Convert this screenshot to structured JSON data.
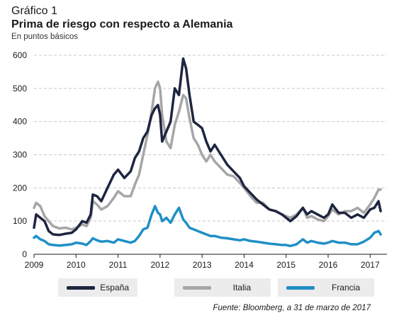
{
  "header": {
    "kicker": "Gráfico 1",
    "title": "Prima de riesgo con respecto a Alemania",
    "subtitle": "En puntos básicos"
  },
  "source": "Fuente: Bloomberg, a 31 de marzo de 2017",
  "chart_data": {
    "type": "line",
    "title": "Prima de riesgo con respecto a Alemania",
    "ylabel": "",
    "xlabel": "",
    "xlim": [
      2009.0,
      2017.4
    ],
    "ylim": [
      0,
      600
    ],
    "yticks": [
      0,
      100,
      200,
      300,
      400,
      500,
      600
    ],
    "ytick_labels": [
      "0",
      "100",
      "200",
      "300",
      "400",
      "500",
      "600"
    ],
    "xticks": [
      2009,
      2010,
      2011,
      2012,
      2013,
      2014,
      2015,
      2016,
      2017
    ],
    "xtick_labels": [
      "2009",
      "2010",
      "2011",
      "2012",
      "2013",
      "2014",
      "2015",
      "2016",
      "2017"
    ],
    "grid": "horizontal dashed",
    "legend_position": "bottom",
    "series": [
      {
        "name": "Italia",
        "color": "#a6a6a6",
        "x": [
          2009.0,
          2009.05,
          2009.15,
          2009.25,
          2009.35,
          2009.45,
          2009.6,
          2009.75,
          2009.9,
          2010.0,
          2010.15,
          2010.25,
          2010.35,
          2010.4,
          2010.5,
          2010.6,
          2010.75,
          2010.9,
          2011.0,
          2011.15,
          2011.3,
          2011.4,
          2011.5,
          2011.6,
          2011.7,
          2011.8,
          2011.88,
          2011.95,
          2012.0,
          2012.05,
          2012.15,
          2012.25,
          2012.35,
          2012.45,
          2012.55,
          2012.62,
          2012.7,
          2012.8,
          2012.9,
          2013.0,
          2013.1,
          2013.2,
          2013.3,
          2013.45,
          2013.6,
          2013.75,
          2013.9,
          2014.0,
          2014.15,
          2014.3,
          2014.45,
          2014.6,
          2014.75,
          2014.9,
          2015.0,
          2015.1,
          2015.25,
          2015.4,
          2015.5,
          2015.6,
          2015.75,
          2015.9,
          2016.0,
          2016.1,
          2016.25,
          2016.4,
          2016.55,
          2016.7,
          2016.85,
          2017.0,
          2017.1,
          2017.2,
          2017.25
        ],
        "y": [
          140,
          155,
          145,
          115,
          100,
          85,
          78,
          80,
          75,
          80,
          90,
          85,
          110,
          160,
          150,
          135,
          145,
          170,
          190,
          175,
          175,
          210,
          240,
          300,
          360,
          430,
          500,
          520,
          500,
          420,
          340,
          320,
          390,
          430,
          480,
          470,
          410,
          350,
          330,
          300,
          280,
          300,
          280,
          260,
          240,
          235,
          215,
          200,
          175,
          155,
          155,
          135,
          130,
          120,
          115,
          110,
          120,
          140,
          110,
          115,
          105,
          100,
          115,
          135,
          120,
          130,
          130,
          140,
          125,
          150,
          170,
          195,
          195
        ]
      },
      {
        "name": "España",
        "color": "#1e2540",
        "x": [
          2009.0,
          2009.05,
          2009.15,
          2009.25,
          2009.35,
          2009.45,
          2009.6,
          2009.75,
          2009.9,
          2010.0,
          2010.15,
          2010.25,
          2010.35,
          2010.4,
          2010.5,
          2010.6,
          2010.75,
          2010.9,
          2011.0,
          2011.15,
          2011.3,
          2011.4,
          2011.5,
          2011.6,
          2011.7,
          2011.8,
          2011.88,
          2011.95,
          2012.0,
          2012.05,
          2012.15,
          2012.25,
          2012.35,
          2012.45,
          2012.55,
          2012.62,
          2012.7,
          2012.8,
          2012.9,
          2013.0,
          2013.1,
          2013.2,
          2013.3,
          2013.45,
          2013.6,
          2013.75,
          2013.9,
          2014.0,
          2014.15,
          2014.3,
          2014.45,
          2014.6,
          2014.75,
          2014.9,
          2015.0,
          2015.1,
          2015.25,
          2015.4,
          2015.5,
          2015.6,
          2015.75,
          2015.9,
          2016.0,
          2016.1,
          2016.25,
          2016.4,
          2016.55,
          2016.7,
          2016.85,
          2017.0,
          2017.1,
          2017.2,
          2017.25
        ],
        "y": [
          80,
          120,
          110,
          100,
          70,
          60,
          58,
          62,
          65,
          75,
          100,
          95,
          120,
          180,
          175,
          160,
          200,
          240,
          255,
          230,
          250,
          290,
          310,
          350,
          370,
          420,
          440,
          450,
          420,
          340,
          370,
          400,
          500,
          480,
          590,
          560,
          480,
          400,
          390,
          380,
          340,
          310,
          330,
          300,
          270,
          250,
          230,
          205,
          185,
          165,
          150,
          135,
          130,
          120,
          110,
          100,
          115,
          140,
          120,
          130,
          120,
          110,
          120,
          150,
          125,
          125,
          110,
          120,
          110,
          135,
          140,
          160,
          130
        ]
      },
      {
        "name": "Francia",
        "color": "#1f8fc6",
        "x": [
          2009.0,
          2009.05,
          2009.15,
          2009.25,
          2009.35,
          2009.45,
          2009.6,
          2009.75,
          2009.9,
          2010.0,
          2010.15,
          2010.25,
          2010.35,
          2010.4,
          2010.5,
          2010.6,
          2010.75,
          2010.9,
          2011.0,
          2011.15,
          2011.3,
          2011.4,
          2011.5,
          2011.6,
          2011.7,
          2011.8,
          2011.88,
          2011.95,
          2012.0,
          2012.05,
          2012.15,
          2012.25,
          2012.35,
          2012.45,
          2012.55,
          2012.62,
          2012.7,
          2012.8,
          2012.9,
          2013.0,
          2013.1,
          2013.2,
          2013.3,
          2013.45,
          2013.6,
          2013.75,
          2013.9,
          2014.0,
          2014.15,
          2014.3,
          2014.45,
          2014.6,
          2014.75,
          2014.9,
          2015.0,
          2015.1,
          2015.25,
          2015.4,
          2015.5,
          2015.6,
          2015.75,
          2015.9,
          2016.0,
          2016.1,
          2016.25,
          2016.4,
          2016.55,
          2016.7,
          2016.85,
          2017.0,
          2017.1,
          2017.2,
          2017.25
        ],
        "y": [
          50,
          55,
          45,
          40,
          30,
          28,
          26,
          28,
          30,
          35,
          32,
          28,
          40,
          48,
          42,
          38,
          40,
          35,
          45,
          40,
          35,
          40,
          55,
          75,
          80,
          120,
          145,
          125,
          120,
          100,
          110,
          95,
          120,
          140,
          105,
          95,
          80,
          75,
          70,
          65,
          60,
          55,
          55,
          50,
          48,
          45,
          42,
          45,
          40,
          38,
          35,
          32,
          30,
          28,
          28,
          25,
          30,
          45,
          35,
          40,
          35,
          32,
          35,
          40,
          35,
          35,
          30,
          30,
          38,
          50,
          65,
          70,
          60
        ]
      }
    ]
  },
  "legend": [
    {
      "label": "España",
      "color": "#1e2540"
    },
    {
      "label": "Italia",
      "color": "#a6a6a6"
    },
    {
      "label": "Francia",
      "color": "#1f8fc6"
    }
  ]
}
